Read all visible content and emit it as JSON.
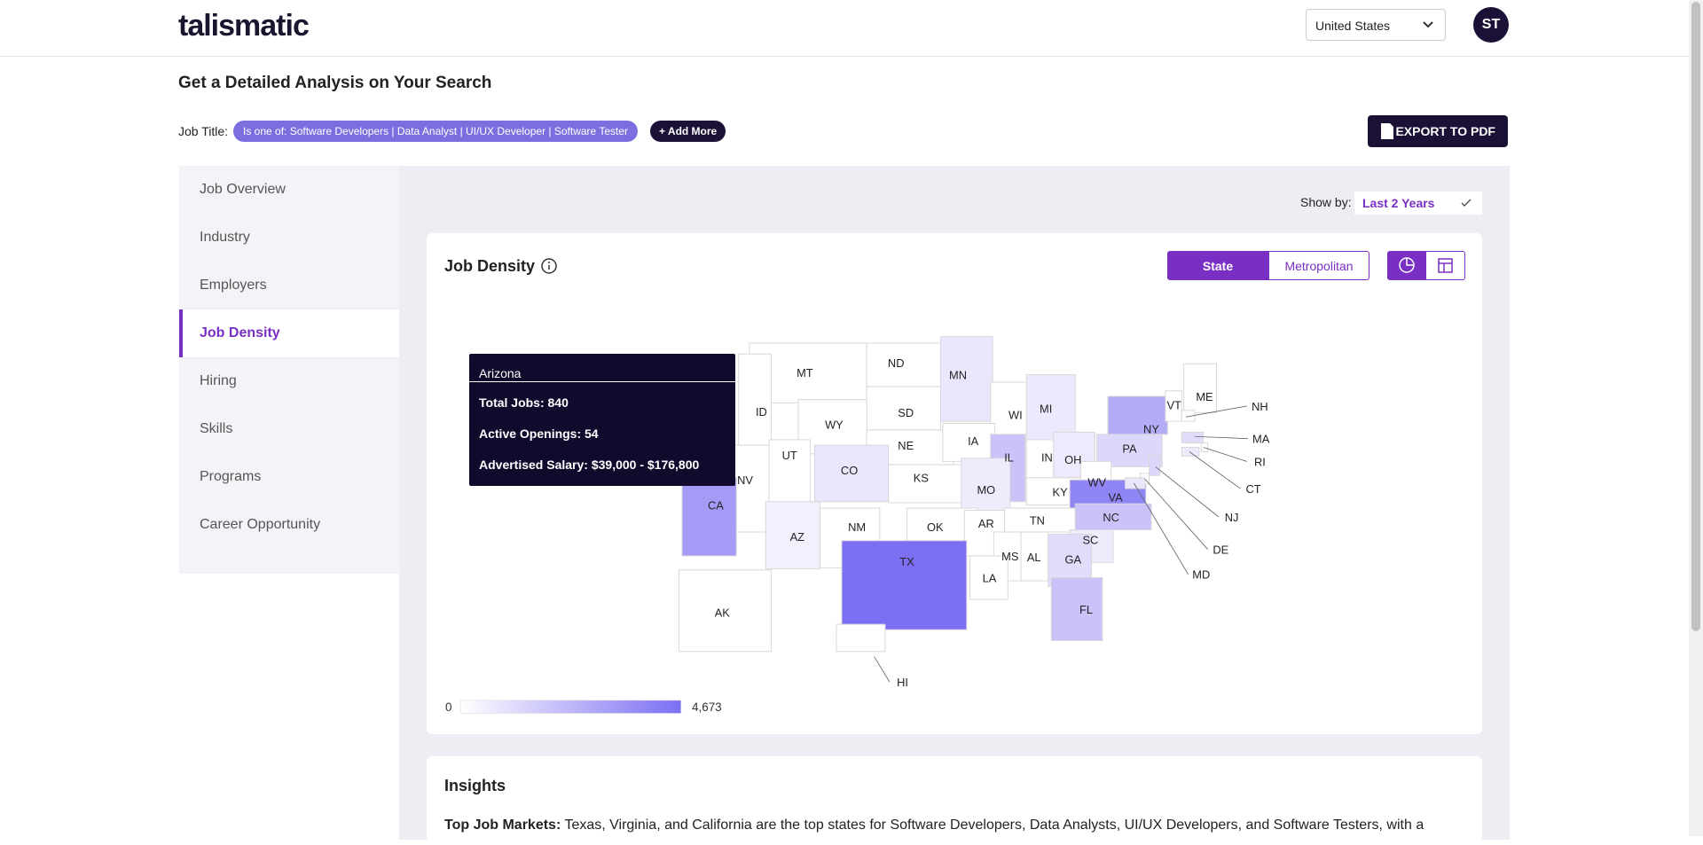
{
  "header": {
    "logo": "talismatic",
    "country": "United States",
    "avatar": "ST"
  },
  "page": {
    "title": "Get a Detailed Analysis on Your Search",
    "job_title_label": "Job Title:",
    "filter_chip": "Is one of: Software Developers | Data Analyst | UI/UX Developer | Software Tester",
    "add_more": "+ Add More",
    "export": "EXPORT TO PDF"
  },
  "sidebar": {
    "items": [
      "Job Overview",
      "Industry",
      "Employers",
      "Job Density",
      "Hiring",
      "Skills",
      "Programs",
      "Career Opportunity"
    ],
    "active": 3
  },
  "panel": {
    "show_by_label": "Show by:",
    "show_by_value": "Last 2 Years"
  },
  "job_density": {
    "title": "Job Density",
    "toggle": [
      "State",
      "Metropolitan"
    ],
    "active_toggle": 0,
    "states": [
      {
        "label": "MT",
        "color": "#ffffff"
      },
      {
        "label": "ND",
        "color": "#ffffff"
      },
      {
        "label": "MN",
        "color": "#e9e7fc"
      },
      {
        "label": "SD",
        "color": "#ffffff"
      },
      {
        "label": "WI",
        "color": "#ffffff"
      },
      {
        "label": "MI",
        "color": "#ebe9fc"
      },
      {
        "label": "ID",
        "color": "#ffffff"
      },
      {
        "label": "WY",
        "color": "#ffffff"
      },
      {
        "label": "NE",
        "color": "#ffffff"
      },
      {
        "label": "IA",
        "color": "#ffffff"
      },
      {
        "label": "IL",
        "color": "#c9c3f9"
      },
      {
        "label": "IN",
        "color": "#ffffff"
      },
      {
        "label": "OH",
        "color": "#eceafc"
      },
      {
        "label": "PA",
        "color": "#dcd8fb"
      },
      {
        "label": "NY",
        "color": "#b3acf7"
      },
      {
        "label": "VT",
        "color": "#ffffff"
      },
      {
        "label": "ME",
        "color": "#ffffff"
      },
      {
        "label": "UT",
        "color": "#ffffff"
      },
      {
        "label": "CO",
        "color": "#e9e7fc"
      },
      {
        "label": "KS",
        "color": "#ffffff"
      },
      {
        "label": "MO",
        "color": "#eeecfc"
      },
      {
        "label": "KY",
        "color": "#ffffff"
      },
      {
        "label": "WV",
        "color": "#ffffff"
      },
      {
        "label": "VA",
        "color": "#8f85f5"
      },
      {
        "label": "NV",
        "color": "#ffffff"
      },
      {
        "label": "CA",
        "color": "#a39bf6"
      },
      {
        "label": "AZ",
        "color": "#f1f0fd"
      },
      {
        "label": "NM",
        "color": "#ffffff"
      },
      {
        "label": "OK",
        "color": "#ffffff"
      },
      {
        "label": "AR",
        "color": "#ffffff"
      },
      {
        "label": "TN",
        "color": "#ffffff"
      },
      {
        "label": "NC",
        "color": "#c9c3f9"
      },
      {
        "label": "SC",
        "color": "#eeecfc"
      },
      {
        "label": "MS",
        "color": "#ffffff"
      },
      {
        "label": "AL",
        "color": "#ffffff"
      },
      {
        "label": "GA",
        "color": "#e0ddfb"
      },
      {
        "label": "TX",
        "color": "#7c6ff3"
      },
      {
        "label": "LA",
        "color": "#ffffff"
      },
      {
        "label": "FL",
        "color": "#c9c3f9"
      },
      {
        "label": "AK",
        "color": "#ffffff"
      },
      {
        "label": "HI",
        "color": "#ffffff"
      },
      {
        "label": "NH",
        "color": "#ffffff"
      },
      {
        "label": "MA",
        "color": "#e0ddfb"
      },
      {
        "label": "RI",
        "color": "#ffffff"
      },
      {
        "label": "CT",
        "color": "#eceafc"
      },
      {
        "label": "NJ",
        "color": "#dcd8fb"
      },
      {
        "label": "DE",
        "color": "#ffffff"
      },
      {
        "label": "MD",
        "color": "#e9e7fc"
      }
    ],
    "legend": {
      "min": 0,
      "max": {
        "value": 4673,
        "label": "4,673"
      },
      "low_color": "#ffffff",
      "high_color": "#7c6ff3"
    },
    "tooltip": {
      "state": "Arizona",
      "total_jobs": "Total Jobs: 840",
      "active_openings": "Active Openings: 54",
      "salary": "Advertised Salary: $39,000 - $176,800"
    }
  },
  "insights": {
    "title": "Insights",
    "lead": "Top Job Markets:",
    "text": "Texas, Virginia, and California are the top states for Software Developers, Data Analysts, UI/UX Developers, and Software Testers, with a"
  }
}
